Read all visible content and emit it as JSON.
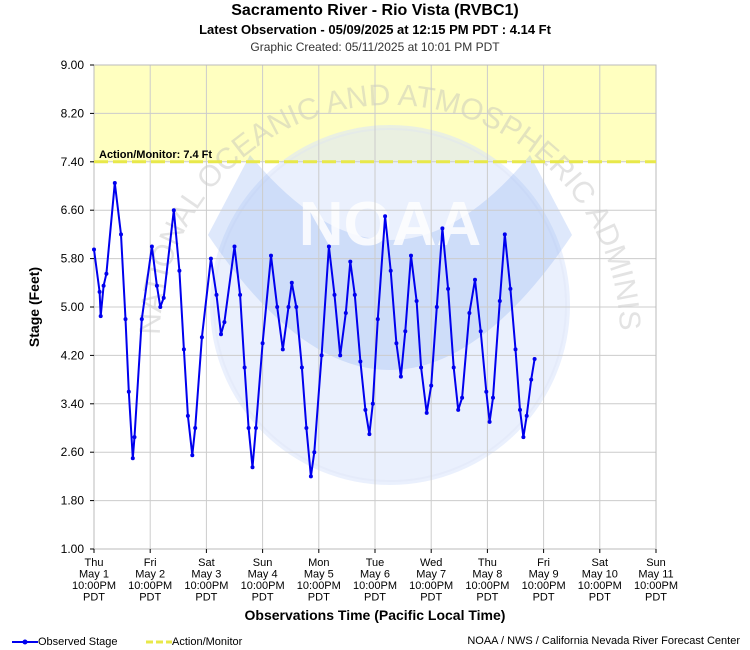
{
  "header": {
    "title": "Sacramento River - Rio Vista (RVBC1)",
    "subtitle": "Latest Observation - 05/09/2025 at 12:15 PM PDT : 4.14 Ft",
    "created": "Graphic Created: 05/11/2025 at 10:01 PM PDT"
  },
  "legend": {
    "observed_label": "Observed Stage",
    "action_label": "Action/Monitor"
  },
  "footer": {
    "credit": "NOAA / NWS / California Nevada River Forecast Center"
  },
  "watermark": {
    "logo_text": "NOAA",
    "ring_text": "NATIONAL OCEANIC AND ATMOSPHERIC ADMINISTRATION U.S. DEPARTMENT OF COMMERCE"
  },
  "colors": {
    "observed": "#0000ee",
    "action_line": "#e8e84a",
    "action_fill": "#ffffc0",
    "grid": "#cccccc"
  },
  "chart_data": {
    "type": "line",
    "xlabel": "Observations Time (Pacific Local Time)",
    "ylabel": "Stage (Feet)",
    "ylim": [
      1.0,
      9.0
    ],
    "yticks": [
      "1.00",
      "1.80",
      "2.60",
      "3.40",
      "4.20",
      "5.00",
      "5.80",
      "6.60",
      "7.40",
      "8.20",
      "9.00"
    ],
    "x_unit": "days from Thu May 1 10:00PM PDT",
    "xlim": [
      0,
      10
    ],
    "xticks": [
      {
        "x": 0,
        "day": "Thu",
        "date": "May 1",
        "time": "10:00PM",
        "tz": "PDT"
      },
      {
        "x": 1,
        "day": "Fri",
        "date": "May 2",
        "time": "10:00PM",
        "tz": "PDT"
      },
      {
        "x": 2,
        "day": "Sat",
        "date": "May 3",
        "time": "10:00PM",
        "tz": "PDT"
      },
      {
        "x": 3,
        "day": "Sun",
        "date": "May 4",
        "time": "10:00PM",
        "tz": "PDT"
      },
      {
        "x": 4,
        "day": "Mon",
        "date": "May 5",
        "time": "10:00PM",
        "tz": "PDT"
      },
      {
        "x": 5,
        "day": "Tue",
        "date": "May 6",
        "time": "10:00PM",
        "tz": "PDT"
      },
      {
        "x": 6,
        "day": "Wed",
        "date": "May 7",
        "time": "10:00PM",
        "tz": "PDT"
      },
      {
        "x": 7,
        "day": "Thu",
        "date": "May 8",
        "time": "10:00PM",
        "tz": "PDT"
      },
      {
        "x": 8,
        "day": "Fri",
        "date": "May 9",
        "time": "10:00PM",
        "tz": "PDT"
      },
      {
        "x": 9,
        "day": "Sat",
        "date": "May 10",
        "time": "10:00PM",
        "tz": "PDT"
      },
      {
        "x": 10,
        "day": "Sun",
        "date": "May 11",
        "time": "10:00PM",
        "tz": "PDT"
      }
    ],
    "action_stage": {
      "value": 7.4,
      "label": "Action/Monitor: 7.4 Ft"
    },
    "series": [
      {
        "name": "Observed Stage",
        "key_points": [
          [
            0.0,
            5.95
          ],
          [
            0.1,
            5.25
          ],
          [
            0.12,
            4.85
          ],
          [
            0.17,
            5.35
          ],
          [
            0.22,
            5.55
          ],
          [
            0.37,
            7.05
          ],
          [
            0.48,
            6.2
          ],
          [
            0.56,
            4.8
          ],
          [
            0.62,
            3.6
          ],
          [
            0.69,
            2.5
          ],
          [
            0.72,
            2.85
          ],
          [
            0.85,
            4.8
          ],
          [
            1.03,
            6.0
          ],
          [
            1.12,
            5.35
          ],
          [
            1.18,
            5.0
          ],
          [
            1.24,
            5.15
          ],
          [
            1.42,
            6.6
          ],
          [
            1.52,
            5.6
          ],
          [
            1.6,
            4.3
          ],
          [
            1.67,
            3.2
          ],
          [
            1.75,
            2.55
          ],
          [
            1.8,
            3.0
          ],
          [
            1.92,
            4.5
          ],
          [
            2.08,
            5.8
          ],
          [
            2.18,
            5.2
          ],
          [
            2.26,
            4.55
          ],
          [
            2.32,
            4.75
          ],
          [
            2.5,
            6.0
          ],
          [
            2.6,
            5.2
          ],
          [
            2.68,
            4.0
          ],
          [
            2.75,
            3.0
          ],
          [
            2.82,
            2.35
          ],
          [
            2.88,
            3.0
          ],
          [
            3.0,
            4.4
          ],
          [
            3.15,
            5.85
          ],
          [
            3.26,
            5.0
          ],
          [
            3.36,
            4.3
          ],
          [
            3.46,
            5.0
          ],
          [
            3.52,
            5.4
          ],
          [
            3.6,
            5.0
          ],
          [
            3.7,
            4.0
          ],
          [
            3.78,
            3.0
          ],
          [
            3.86,
            2.2
          ],
          [
            3.92,
            2.6
          ],
          [
            4.05,
            4.2
          ],
          [
            4.18,
            6.0
          ],
          [
            4.28,
            5.2
          ],
          [
            4.38,
            4.2
          ],
          [
            4.48,
            4.9
          ],
          [
            4.56,
            5.75
          ],
          [
            4.64,
            5.2
          ],
          [
            4.74,
            4.1
          ],
          [
            4.83,
            3.3
          ],
          [
            4.9,
            2.9
          ],
          [
            4.96,
            3.4
          ],
          [
            5.05,
            4.8
          ],
          [
            5.18,
            6.5
          ],
          [
            5.28,
            5.6
          ],
          [
            5.38,
            4.4
          ],
          [
            5.46,
            3.85
          ],
          [
            5.54,
            4.6
          ],
          [
            5.64,
            5.85
          ],
          [
            5.74,
            5.1
          ],
          [
            5.82,
            4.0
          ],
          [
            5.92,
            3.25
          ],
          [
            6.0,
            3.7
          ],
          [
            6.1,
            5.0
          ],
          [
            6.2,
            6.3
          ],
          [
            6.3,
            5.3
          ],
          [
            6.4,
            4.0
          ],
          [
            6.48,
            3.3
          ],
          [
            6.55,
            3.5
          ],
          [
            6.68,
            4.9
          ],
          [
            6.78,
            5.45
          ],
          [
            6.88,
            4.6
          ],
          [
            6.98,
            3.6
          ],
          [
            7.04,
            3.1
          ],
          [
            7.1,
            3.5
          ],
          [
            7.22,
            5.1
          ],
          [
            7.31,
            6.2
          ],
          [
            7.41,
            5.3
          ],
          [
            7.5,
            4.3
          ],
          [
            7.58,
            3.3
          ],
          [
            7.64,
            2.85
          ],
          [
            7.7,
            3.2
          ],
          [
            7.78,
            3.8
          ],
          [
            7.84,
            4.14
          ]
        ]
      }
    ]
  }
}
